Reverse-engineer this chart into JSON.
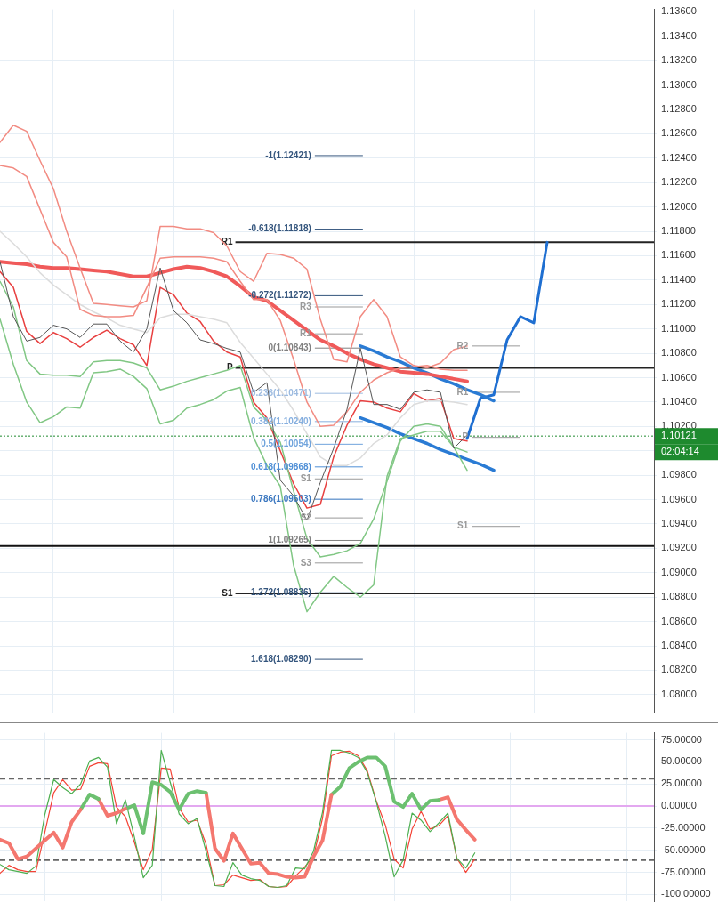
{
  "chart_data": [
    {
      "type": "line",
      "grid": true,
      "tick_labels": "y",
      "categories": [
        null,
        null,
        null,
        null,
        null,
        null,
        null,
        null,
        null,
        null,
        null,
        null,
        null,
        null,
        null,
        null,
        null,
        null,
        null,
        null,
        null,
        null,
        null,
        null,
        null,
        null,
        null,
        null,
        null,
        null,
        null,
        null,
        null,
        null,
        null,
        null,
        null,
        null,
        null,
        null,
        null,
        null,
        null,
        null,
        null,
        null,
        null,
        null,
        null,
        null
      ],
      "ylim": [
        1.0785,
        1.1362
      ],
      "yticks": [
        {
          "value": 1.08,
          "label": "1.08000"
        },
        {
          "value": 1.082,
          "label": "1.08200"
        },
        {
          "value": 1.084,
          "label": "1.08400"
        },
        {
          "value": 1.086,
          "label": "1.08600"
        },
        {
          "value": 1.088,
          "label": "1.08800"
        },
        {
          "value": 1.09,
          "label": "1.09000"
        },
        {
          "value": 1.092,
          "label": "1.09200"
        },
        {
          "value": 1.094,
          "label": "1.09400"
        },
        {
          "value": 1.096,
          "label": "1.09600"
        },
        {
          "value": 1.098,
          "label": "1.09800"
        },
        {
          "value": 1.1,
          "label": null
        },
        {
          "value": 1.102,
          "label": "1.10200"
        },
        {
          "value": 1.104,
          "label": "1.10400"
        },
        {
          "value": 1.106,
          "label": "1.10600"
        },
        {
          "value": 1.108,
          "label": "1.10800"
        },
        {
          "value": 1.11,
          "label": "1.11000"
        },
        {
          "value": 1.112,
          "label": "1.11200"
        },
        {
          "value": 1.114,
          "label": "1.11400"
        },
        {
          "value": 1.116,
          "label": "1.11600"
        },
        {
          "value": 1.118,
          "label": "1.11800"
        },
        {
          "value": 1.12,
          "label": "1.12000"
        },
        {
          "value": 1.122,
          "label": "1.12200"
        },
        {
          "value": 1.124,
          "label": "1.12400"
        },
        {
          "value": 1.126,
          "label": "1.12600"
        },
        {
          "value": 1.128,
          "label": "1.12800"
        },
        {
          "value": 1.13,
          "label": "1.13000"
        },
        {
          "value": 1.132,
          "label": "1.13200"
        },
        {
          "value": 1.134,
          "label": "1.13400"
        },
        {
          "value": 1.136,
          "label": "1.13600"
        }
      ],
      "series": [
        {
          "color": "#555555",
          "values": [
            1.1155,
            1.111,
            1.109,
            1.1093,
            1.1103,
            1.11,
            1.1093,
            1.1104,
            1.1104,
            1.109,
            1.1081,
            1.11,
            1.115,
            1.1115,
            1.1105,
            1.1091,
            1.1088,
            1.1084,
            1.1081,
            1.1048,
            1.1056,
            1.0976,
            1.0963,
            1.0943,
            1.0974,
            1.1002,
            1.1034,
            1.1084,
            1.1038,
            1.1038,
            1.1034,
            1.1048,
            1.105,
            1.1048,
            1.1002,
            1.1013,
            null,
            null,
            null,
            null,
            null,
            null,
            null,
            null,
            null,
            null,
            null,
            null,
            null,
            null
          ]
        },
        {
          "color": "#f28b82",
          "values": [
            1.1253,
            1.1267,
            1.1262,
            1.1238,
            1.1215,
            1.118,
            1.115,
            1.1121,
            1.112,
            1.1119,
            1.1118,
            1.1123,
            1.1184,
            1.1184,
            1.1182,
            1.1182,
            1.1179,
            1.1168,
            1.1147,
            1.1139,
            1.1162,
            1.1161,
            1.1158,
            1.1149,
            1.1108,
            1.1075,
            1.1073,
            1.111,
            1.1124,
            1.111,
            1.1077,
            1.107,
            1.1068,
            1.1072,
            1.1083,
            1.1086,
            null,
            null,
            null,
            null,
            null,
            null,
            null,
            null,
            null,
            null,
            null,
            null,
            null,
            null
          ]
        },
        {
          "color": "#f28b82",
          "values": [
            1.1234,
            1.1232,
            1.1225,
            1.1198,
            1.1171,
            1.1159,
            1.1116,
            1.1111,
            1.111,
            1.111,
            1.1111,
            1.1134,
            1.1158,
            1.1159,
            1.1159,
            1.1159,
            1.1158,
            1.1155,
            1.1139,
            1.1124,
            1.1124,
            1.1107,
            1.1075,
            1.104,
            1.102,
            1.1021,
            1.1032,
            1.1048,
            1.1058,
            1.1064,
            1.1068,
            1.1069,
            1.107,
            1.1067,
            1.1066,
            1.1066,
            null,
            null,
            null,
            null,
            null,
            null,
            null,
            null,
            null,
            null,
            null,
            null,
            null,
            null
          ]
        },
        {
          "color": "#dcdcdc",
          "values": [
            1.118,
            1.117,
            1.1159,
            1.1146,
            1.1136,
            1.1128,
            1.112,
            1.1114,
            1.1109,
            1.1103,
            1.11,
            1.1097,
            1.1109,
            1.1112,
            1.1112,
            1.111,
            1.1108,
            1.1105,
            1.1089,
            1.1076,
            1.1063,
            1.105,
            1.1033,
            1.1014,
            1.0995,
            1.0988,
            1.0988,
            1.0994,
            1.1006,
            1.1013,
            1.1027,
            1.1038,
            1.1041,
            1.1041,
            1.104,
            1.1038,
            null,
            null,
            null,
            null,
            null,
            null,
            null,
            null,
            null,
            null,
            null,
            null,
            null,
            null
          ]
        },
        {
          "color": "#81c784",
          "values": [
            1.1108,
            1.1071,
            1.104,
            1.1023,
            1.1028,
            1.1036,
            1.1035,
            1.1064,
            1.1065,
            1.1067,
            1.1061,
            1.1051,
            1.1022,
            1.1025,
            1.1035,
            1.1038,
            1.1042,
            1.1049,
            1.1052,
            1.1011,
            1.0988,
            1.0971,
            1.0906,
            1.0868,
            1.0884,
            1.0897,
            1.0888,
            1.088,
            1.089,
            1.0979,
            1.101,
            1.1013,
            1.1016,
            1.1016,
            1.1003,
            1.0984,
            null,
            null,
            null,
            null,
            null,
            null,
            null,
            null,
            null,
            null,
            null,
            null,
            null,
            null
          ]
        },
        {
          "color": "#81c784",
          "values": [
            1.1139,
            1.1118,
            1.1074,
            1.1063,
            1.1062,
            1.1062,
            1.1061,
            1.1073,
            1.1074,
            1.1074,
            1.1072,
            1.1068,
            1.105,
            1.1053,
            1.1057,
            1.106,
            1.1063,
            1.1066,
            1.107,
            1.1036,
            1.1025,
            1.1007,
            1.0967,
            1.0928,
            1.0913,
            1.0915,
            1.0918,
            1.0924,
            1.0944,
            1.0975,
            1.1008,
            1.102,
            1.1022,
            1.102,
            1.1003,
            1.0999,
            null,
            null,
            null,
            null,
            null,
            null,
            null,
            null,
            null,
            null,
            null,
            null,
            null,
            null
          ]
        },
        {
          "color": "#f05a5a",
          "values": [
            1.1155,
            1.1154,
            1.1153,
            1.1151,
            1.115,
            1.115,
            1.1149,
            1.1148,
            1.1147,
            1.1145,
            1.1143,
            1.1143,
            1.1146,
            1.1149,
            1.1151,
            1.115,
            1.1147,
            1.1143,
            1.1135,
            1.1126,
            1.1123,
            1.1115,
            1.1107,
            1.1099,
            1.1091,
            1.1086,
            1.108,
            1.1075,
            1.1071,
            1.1068,
            1.1065,
            1.1064,
            1.1063,
            1.1061,
            1.1059,
            1.1057,
            null,
            null,
            null,
            null,
            null,
            null,
            null,
            null,
            null,
            null,
            null,
            null,
            null,
            null
          ]
        },
        {
          "color": "#e84040",
          "values": [
            1.1147,
            1.1134,
            1.1098,
            1.1088,
            1.1097,
            1.1092,
            1.1085,
            1.1093,
            1.1099,
            1.1092,
            1.1087,
            1.107,
            1.1134,
            1.1128,
            1.1113,
            1.1106,
            1.109,
            1.1081,
            1.1077,
            1.104,
            1.1027,
            1.1,
            1.0973,
            1.0953,
            1.0956,
            1.0995,
            1.1021,
            1.1041,
            1.104,
            1.1035,
            1.1032,
            1.1047,
            1.1041,
            1.1043,
            1.101,
            1.1008,
            null,
            null,
            null,
            null,
            null,
            null,
            null,
            null,
            null,
            null,
            null,
            null,
            null,
            null
          ]
        },
        {
          "color": "#2a7bd4",
          "values": [
            null,
            null,
            null,
            null,
            null,
            null,
            null,
            null,
            null,
            null,
            null,
            null,
            null,
            null,
            null,
            null,
            null,
            null,
            null,
            null,
            null,
            null,
            null,
            null,
            null,
            null,
            null,
            1.1086,
            1.1082,
            1.1077,
            1.1073,
            1.1068,
            1.1064,
            1.1059,
            1.1055,
            1.105,
            1.1046,
            1.1041,
            null,
            null,
            null,
            null,
            null,
            null,
            null,
            null,
            null,
            null,
            null,
            null
          ]
        },
        {
          "color": "#2a7bd4",
          "values": [
            null,
            null,
            null,
            null,
            null,
            null,
            null,
            null,
            null,
            null,
            null,
            null,
            null,
            null,
            null,
            null,
            null,
            null,
            null,
            null,
            null,
            null,
            null,
            null,
            null,
            null,
            null,
            1.1027,
            1.1023,
            1.1019,
            1.1014,
            1.101,
            1.1006,
            1.1001,
            1.0997,
            1.0993,
            1.0989,
            1.0984,
            null,
            null,
            null,
            null,
            null,
            null,
            null,
            null,
            null,
            null,
            null,
            null
          ]
        },
        {
          "color": "#1f6fd1",
          "values": [
            null,
            null,
            null,
            null,
            null,
            null,
            null,
            null,
            null,
            null,
            null,
            null,
            null,
            null,
            null,
            null,
            null,
            null,
            null,
            null,
            null,
            null,
            null,
            null,
            null,
            null,
            null,
            null,
            null,
            null,
            null,
            null,
            null,
            null,
            null,
            1.101,
            1.1043,
            1.1046,
            1.1091,
            1.111,
            1.1105,
            1.1171,
            null,
            null,
            null,
            null,
            null,
            null,
            null,
            null
          ]
        }
      ],
      "ref_lines": [
        {
          "axis": "y",
          "value": 1.1171,
          "label": "R1",
          "color": "#222222",
          "line_style": "solid"
        },
        {
          "axis": "y",
          "value": 1.1068,
          "label": "P",
          "color": "#222222",
          "line_style": "solid"
        },
        {
          "axis": "y",
          "value": 1.0922,
          "color": "#111111",
          "line_style": "solid"
        },
        {
          "axis": "y",
          "value": 1.0883,
          "label": "S1",
          "color": "#222222",
          "line_style": "solid"
        },
        {
          "axis": "y",
          "value": 1.10121,
          "label": "1.10121",
          "color": "#1e8a2e",
          "line_style": "dotted"
        },
        {
          "axis": "y",
          "value": 1.12421,
          "label": "-1(1.12421)",
          "color": "#34557d",
          "line_style": "solid"
        },
        {
          "axis": "y",
          "value": 1.11818,
          "label": "-0.618(1.11818)",
          "color": "#34557d",
          "line_style": "solid"
        },
        {
          "axis": "y",
          "value": 1.11272,
          "label": "-0.272(1.11272)",
          "color": "#34557d",
          "line_style": "solid"
        },
        {
          "axis": "y",
          "value": 1.10843,
          "label": "0(1.10843)",
          "color": "#808080",
          "line_style": "solid"
        },
        {
          "axis": "y",
          "value": 1.10471,
          "label": "0.236(1.10471)",
          "color": "#9dbbe0",
          "line_style": "solid"
        },
        {
          "axis": "y",
          "value": 1.1024,
          "label": "0.382(1.10240)",
          "color": "#86afdf",
          "line_style": "solid"
        },
        {
          "axis": "y",
          "value": 1.10054,
          "label": "0.5(1.10054)",
          "color": "#6fa3dc",
          "line_style": "solid"
        },
        {
          "axis": "y",
          "value": 1.09868,
          "label": "0.618(1.09868)",
          "color": "#4f8fd6",
          "line_style": "solid"
        },
        {
          "axis": "y",
          "value": 1.09603,
          "label": "0.786(1.09603)",
          "color": "#3c78c0",
          "line_style": "solid"
        },
        {
          "axis": "y",
          "value": 1.09265,
          "label": "1(1.09265)",
          "color": "#808080",
          "line_style": "solid"
        },
        {
          "axis": "y",
          "value": 1.08836,
          "label": "1.272(1.08836)",
          "color": "#34557d",
          "line_style": "solid"
        },
        {
          "axis": "y",
          "value": 1.0829,
          "label": "1.618(1.08290)",
          "color": "#34557d",
          "line_style": "solid"
        },
        {
          "axis": "y",
          "value": 1.1118,
          "label": "R3",
          "color": "#999999",
          "line_style": "solid"
        },
        {
          "axis": "y",
          "value": 1.1086,
          "label": "R2",
          "color": "#999999",
          "line_style": "solid"
        },
        {
          "axis": "y",
          "value": 1.1096,
          "label": "R1",
          "color": "#999999",
          "line_style": "solid"
        },
        {
          "axis": "y",
          "value": 1.1048,
          "label": "R1",
          "color": "#999999",
          "line_style": "solid"
        },
        {
          "axis": "y",
          "value": 1.1011,
          "label": "P",
          "color": "#999999",
          "line_style": "solid"
        },
        {
          "axis": "y",
          "value": 1.0977,
          "label": "S1",
          "color": "#999999",
          "line_style": "solid"
        },
        {
          "axis": "y",
          "value": 1.0945,
          "label": "S2",
          "color": "#999999",
          "line_style": "solid"
        },
        {
          "axis": "y",
          "value": 1.0938,
          "label": "S1",
          "color": "#999999",
          "line_style": "solid"
        },
        {
          "axis": "y",
          "value": 1.0908,
          "label": "S3",
          "color": "#999999",
          "line_style": "solid"
        }
      ],
      "annotations": [
        "02:04:14"
      ]
    },
    {
      "type": "line",
      "grid": true,
      "tick_labels": "y",
      "categories": [
        null,
        null,
        null,
        null,
        null,
        null,
        null,
        null,
        null,
        null,
        null,
        null,
        null,
        null,
        null,
        null,
        null,
        null,
        null,
        null,
        null,
        null,
        null,
        null,
        null,
        null,
        null,
        null,
        null,
        null,
        null,
        null,
        null,
        null,
        null,
        null,
        null,
        null,
        null,
        null,
        null,
        null,
        null,
        null,
        null,
        null,
        null,
        null,
        null,
        null,
        null,
        null,
        null,
        null,
        null,
        null,
        null,
        null,
        null,
        null,
        null,
        null,
        null,
        null,
        null,
        null,
        null,
        null,
        null,
        null,
        null,
        null,
        null,
        null
      ],
      "ylim": [
        -108,
        83
      ],
      "yticks": [
        {
          "value": 75,
          "label": "75.00000"
        },
        {
          "value": 50,
          "label": "50.00000"
        },
        {
          "value": 25,
          "label": "25.00000"
        },
        {
          "value": 0,
          "label": "0.00000"
        },
        {
          "value": -25,
          "label": "-25.00000"
        },
        {
          "value": -50,
          "label": "-50.00000"
        },
        {
          "value": -75,
          "label": "-75.00000"
        },
        {
          "value": -100,
          "label": "-100.00000"
        }
      ],
      "series": [
        {
          "color": "#f4776f",
          "values": [
            -38,
            -42,
            -60,
            -57,
            -48,
            -39,
            -30,
            -47,
            -18,
            -4,
            null,
            null,
            null,
            null,
            null,
            null,
            null,
            null,
            null,
            null,
            null,
            null,
            null,
            null,
            null,
            null,
            null,
            null,
            null,
            null,
            null,
            null,
            null,
            null,
            null,
            null,
            null,
            null,
            null,
            null,
            null,
            null,
            null,
            null,
            null,
            null,
            null,
            null,
            null,
            null,
            null,
            null,
            null,
            null,
            null,
            null,
            null,
            null,
            null,
            null,
            null,
            null,
            null,
            null,
            null,
            null,
            null,
            null,
            null,
            null,
            null,
            null,
            null,
            null
          ]
        },
        {
          "color": "#6cc070",
          "values": [
            null,
            null,
            null,
            null,
            null,
            null,
            null,
            null,
            null,
            -4,
            13,
            8,
            null,
            null,
            null,
            null,
            null,
            null,
            null,
            null,
            null,
            null,
            null,
            null,
            null,
            null,
            null,
            null,
            null,
            null,
            null,
            null,
            null,
            null,
            null,
            null,
            null,
            null,
            null,
            null,
            null,
            null,
            null,
            null,
            null,
            null,
            null,
            null,
            null,
            null,
            null,
            null,
            null,
            null,
            null,
            null,
            null,
            null,
            null,
            null,
            null,
            null,
            null,
            null,
            null,
            null,
            null,
            null,
            null,
            null,
            null,
            null,
            null,
            null
          ]
        },
        {
          "color": "#f4776f",
          "values": [
            null,
            null,
            null,
            null,
            null,
            null,
            null,
            null,
            null,
            null,
            null,
            8,
            -11,
            -8,
            -3,
            null,
            null,
            null,
            null,
            null,
            null,
            null,
            null,
            null,
            null,
            null,
            null,
            null,
            null,
            null,
            null,
            null,
            null,
            null,
            null,
            null,
            null,
            null,
            null,
            null,
            null,
            null,
            null,
            null,
            null,
            null,
            null,
            null,
            null,
            null,
            null,
            null,
            null,
            null,
            null,
            null,
            null,
            null,
            null,
            null,
            null,
            null,
            null,
            null,
            null,
            null,
            null,
            null,
            null,
            null,
            null,
            null,
            null,
            null
          ]
        },
        {
          "color": "#6cc070",
          "values": [
            null,
            null,
            null,
            null,
            null,
            null,
            null,
            null,
            null,
            null,
            null,
            null,
            null,
            null,
            -3,
            1,
            -31,
            27,
            24,
            16,
            -4,
            14,
            17,
            15,
            null,
            null,
            null,
            null,
            null,
            null,
            null,
            null,
            null,
            null,
            null,
            null,
            null,
            null,
            null,
            null,
            null,
            null,
            null,
            null,
            null,
            null,
            null,
            null,
            null,
            null,
            null,
            null,
            null,
            null,
            null,
            null,
            null,
            null,
            null,
            null,
            null,
            null,
            null,
            null,
            null,
            null,
            null,
            null,
            null,
            null,
            null,
            null,
            null,
            null
          ]
        },
        {
          "color": "#f4776f",
          "values": [
            null,
            null,
            null,
            null,
            null,
            null,
            null,
            null,
            null,
            null,
            null,
            null,
            null,
            null,
            null,
            null,
            null,
            null,
            null,
            null,
            null,
            null,
            null,
            15,
            -48,
            -62,
            -31,
            -48,
            -65,
            -64,
            -76,
            -77,
            -80,
            -81,
            -80,
            -57,
            -39,
            13,
            null,
            null,
            null,
            null,
            null,
            null,
            null,
            null,
            null,
            null,
            null,
            null,
            null,
            null,
            null,
            null,
            null,
            null,
            null,
            null,
            null,
            null,
            null,
            null,
            null,
            null,
            null,
            null,
            null,
            null,
            null,
            null,
            null,
            null,
            null,
            null
          ]
        },
        {
          "color": "#6cc070",
          "values": [
            null,
            null,
            null,
            null,
            null,
            null,
            null,
            null,
            null,
            null,
            null,
            null,
            null,
            null,
            null,
            null,
            null,
            null,
            null,
            null,
            null,
            null,
            null,
            null,
            null,
            null,
            null,
            null,
            null,
            null,
            null,
            null,
            null,
            null,
            null,
            null,
            null,
            13,
            22,
            43,
            50,
            55,
            55,
            45,
            5,
            -1,
            14,
            -4,
            6,
            7,
            null,
            null,
            null,
            null,
            null,
            null,
            null,
            null,
            null,
            null,
            null,
            null,
            null,
            null,
            null,
            null,
            null,
            null,
            null,
            null,
            null,
            null,
            null,
            null
          ]
        },
        {
          "color": "#f4776f",
          "values": [
            null,
            null,
            null,
            null,
            null,
            null,
            null,
            null,
            null,
            null,
            null,
            null,
            null,
            null,
            null,
            null,
            null,
            null,
            null,
            null,
            null,
            null,
            null,
            null,
            null,
            null,
            null,
            null,
            null,
            null,
            null,
            null,
            null,
            null,
            null,
            null,
            null,
            null,
            null,
            null,
            null,
            null,
            null,
            null,
            null,
            null,
            null,
            null,
            null,
            7,
            10,
            -15,
            -27,
            -38,
            null,
            null,
            null,
            null,
            null,
            null,
            null,
            null,
            null,
            null,
            null,
            null,
            null,
            null,
            null,
            null,
            null,
            null,
            null,
            null
          ]
        },
        {
          "color": "#4caf50",
          "values": [
            -66,
            -72,
            -74,
            -76,
            -68,
            -10,
            30,
            21,
            14,
            25,
            51,
            55,
            44,
            -20,
            7,
            -35,
            -81,
            -67,
            63,
            27,
            -9,
            -20,
            -14,
            -51,
            -90,
            -91,
            -64,
            -78,
            -82,
            -84,
            -91,
            -92,
            -90,
            -70,
            -71,
            -51,
            -7,
            63,
            63,
            60,
            55,
            38,
            5,
            -34,
            -80,
            -61,
            -8,
            -16,
            -29,
            -19,
            -8,
            -59,
            -70,
            -53,
            null,
            null,
            null,
            null,
            null,
            null,
            null,
            null,
            null,
            null,
            null,
            null,
            null,
            null,
            null,
            null,
            null,
            null,
            null,
            null
          ]
        },
        {
          "color": "#f44336",
          "values": [
            -76,
            -67,
            -72,
            -74,
            -74,
            -30,
            15,
            30,
            18,
            19,
            45,
            49,
            48,
            -1,
            -12,
            -41,
            -72,
            -49,
            43,
            42,
            -2,
            -18,
            -16,
            -43,
            -90,
            -89,
            -78,
            -81,
            -84,
            -83,
            -91,
            -92,
            -91,
            -79,
            -69,
            -57,
            -14,
            57,
            61,
            62,
            57,
            40,
            6,
            -21,
            -60,
            -70,
            -26,
            -6,
            -26,
            -22,
            -11,
            -59,
            -75,
            -60,
            null,
            null,
            null,
            null,
            null,
            null,
            null,
            null,
            null,
            null,
            null,
            null,
            null,
            null,
            null,
            null,
            null,
            null,
            null,
            null
          ]
        }
      ],
      "ref_lines": [
        {
          "axis": "y",
          "value": 31,
          "color": "#666666",
          "line_style": "dashed"
        },
        {
          "axis": "y",
          "value": -61,
          "color": "#666666",
          "line_style": "dashed"
        },
        {
          "axis": "y",
          "value": 0,
          "color": "#e3a8f0",
          "line_style": "solid"
        }
      ]
    }
  ]
}
